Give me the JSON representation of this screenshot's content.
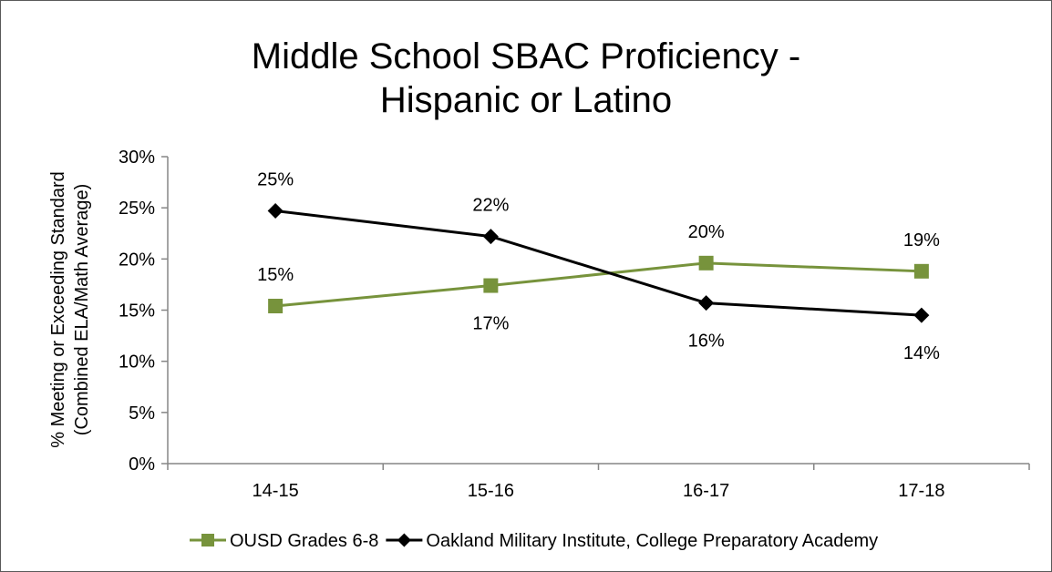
{
  "chart_data": {
    "type": "line",
    "title": "Middle School SBAC Proficiency - Hispanic or Latino",
    "title_lines": [
      "Middle School SBAC Proficiency -",
      "Hispanic or Latino"
    ],
    "ylabel_lines": [
      "% Meeting or Exceeding Standard",
      "(Combined ELA/Math Average)"
    ],
    "xlabel": "",
    "categories": [
      "14-15",
      "15-16",
      "16-17",
      "17-18"
    ],
    "ylim": [
      0,
      30
    ],
    "yticks": [
      0,
      5,
      10,
      15,
      20,
      25,
      30
    ],
    "ytick_labels": [
      "0%",
      "5%",
      "10%",
      "15%",
      "20%",
      "25%",
      "30%"
    ],
    "grid": false,
    "legend_position": "bottom",
    "series": [
      {
        "name": "OUSD Grades 6-8",
        "values": [
          15.4,
          17.4,
          19.6,
          18.8
        ],
        "labels": [
          "15%",
          "17%",
          "20%",
          "19%"
        ],
        "label_side": [
          "above",
          "below",
          "above",
          "above"
        ],
        "color": "#77933c",
        "marker": "square"
      },
      {
        "name": "Oakland Military Institute, College Preparatory Academy",
        "values": [
          24.7,
          22.2,
          15.7,
          14.5
        ],
        "labels": [
          "25%",
          "22%",
          "16%",
          "14%"
        ],
        "label_side": [
          "above",
          "above",
          "below",
          "below"
        ],
        "color": "#000000",
        "marker": "diamond"
      }
    ]
  }
}
